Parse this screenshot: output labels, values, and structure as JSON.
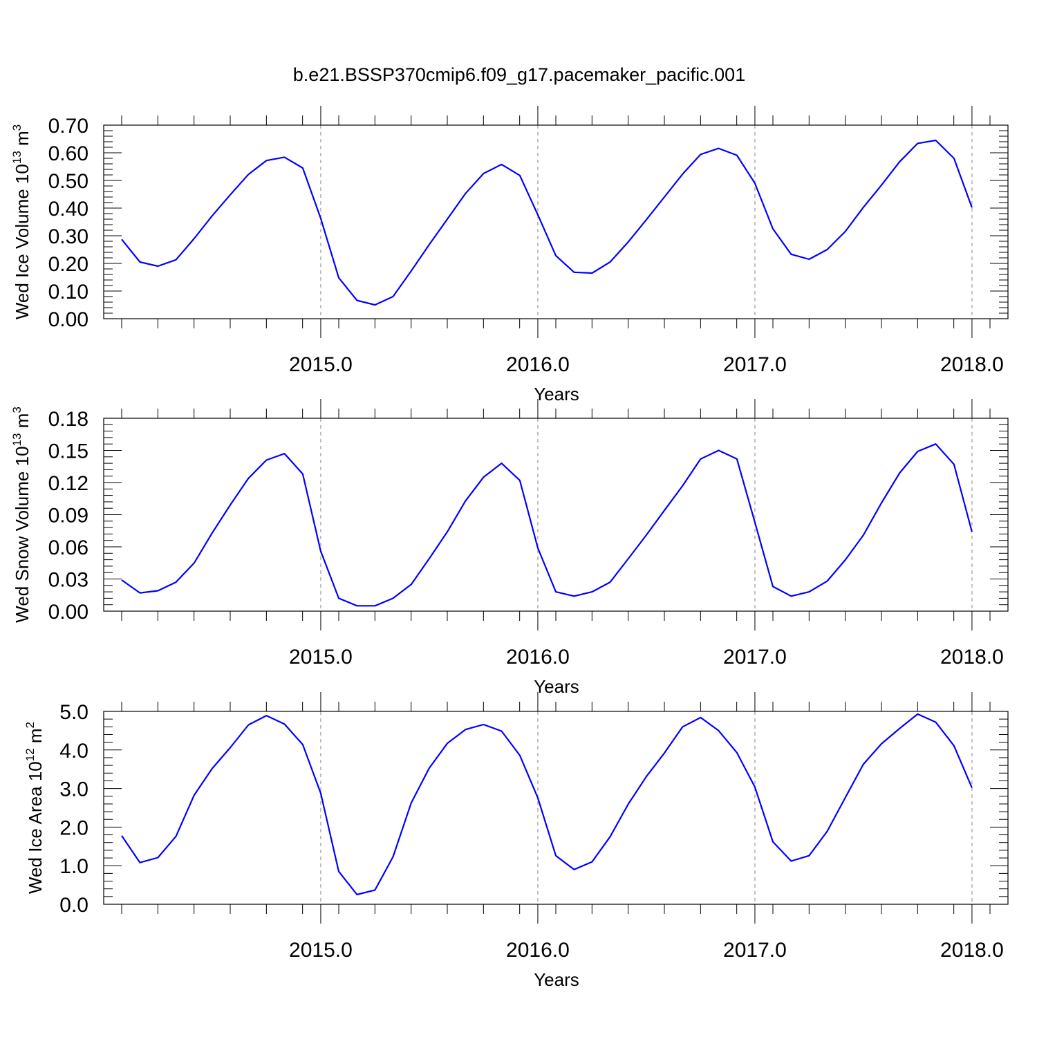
{
  "figure_title": "b.e21.BSSP370cmip6.f09_g17.pacemaker_pacific.001",
  "line_color": "#0000ff",
  "chart_data": [
    {
      "type": "line",
      "xlabel": "Years",
      "ylabel": "Wed Ice Volume 10",
      "ylabel_exp": "13",
      "ylabel_unit": " m",
      "ylabel_unit_exp": "3",
      "xlim": [
        2014.083,
        2018.083
      ],
      "ylim": [
        0.0,
        0.7
      ],
      "xticks": [
        2015.0,
        2016.0,
        2017.0,
        2018.0
      ],
      "xtick_labels": [
        "2015.0",
        "2016.0",
        "2017.0",
        "2018.0"
      ],
      "yticks": [
        0.0,
        0.1,
        0.2,
        0.3,
        0.4,
        0.5,
        0.6,
        0.7
      ],
      "ytick_labels": [
        "0.00",
        "0.10",
        "0.20",
        "0.30",
        "0.40",
        "0.50",
        "0.60",
        "0.70"
      ],
      "grid": "vertical dashed at major x ticks",
      "x": [
        2014.083,
        2014.167,
        2014.25,
        2014.333,
        2014.417,
        2014.5,
        2014.583,
        2014.667,
        2014.75,
        2014.833,
        2014.917,
        2015.0,
        2015.083,
        2015.167,
        2015.25,
        2015.333,
        2015.417,
        2015.5,
        2015.583,
        2015.667,
        2015.75,
        2015.833,
        2015.917,
        2016.0,
        2016.083,
        2016.167,
        2016.25,
        2016.333,
        2016.417,
        2016.5,
        2016.583,
        2016.667,
        2016.75,
        2016.833,
        2016.917,
        2017.0,
        2017.083,
        2017.167,
        2017.25,
        2017.333,
        2017.417,
        2017.5,
        2017.583,
        2017.667,
        2017.75,
        2017.833,
        2017.917,
        2018.0
      ],
      "series": [
        {
          "values": [
            0.287,
            0.205,
            0.19,
            0.213,
            0.29,
            0.372,
            0.448,
            0.522,
            0.572,
            0.584,
            0.545,
            0.363,
            0.148,
            0.066,
            0.05,
            0.08,
            0.173,
            0.268,
            0.36,
            0.453,
            0.525,
            0.558,
            0.518,
            0.376,
            0.228,
            0.168,
            0.165,
            0.205,
            0.278,
            0.358,
            0.44,
            0.523,
            0.594,
            0.616,
            0.591,
            0.49,
            0.325,
            0.233,
            0.215,
            0.25,
            0.316,
            0.403,
            0.483,
            0.568,
            0.634,
            0.645,
            0.58,
            0.402
          ]
        }
      ]
    },
    {
      "type": "line",
      "xlabel": "Years",
      "ylabel": "Wed Snow Volume 10",
      "ylabel_exp": "13",
      "ylabel_unit": " m",
      "ylabel_unit_exp": "3",
      "xlim": [
        2014.083,
        2018.083
      ],
      "ylim": [
        0.0,
        0.18
      ],
      "xticks": [
        2015.0,
        2016.0,
        2017.0,
        2018.0
      ],
      "xtick_labels": [
        "2015.0",
        "2016.0",
        "2017.0",
        "2018.0"
      ],
      "yticks": [
        0.0,
        0.03,
        0.06,
        0.09,
        0.12,
        0.15,
        0.18
      ],
      "ytick_labels": [
        "0.00",
        "0.03",
        "0.06",
        "0.09",
        "0.12",
        "0.15",
        "0.18"
      ],
      "grid": "vertical dashed at major x ticks",
      "x": [
        2014.083,
        2014.167,
        2014.25,
        2014.333,
        2014.417,
        2014.5,
        2014.583,
        2014.667,
        2014.75,
        2014.833,
        2014.917,
        2015.0,
        2015.083,
        2015.167,
        2015.25,
        2015.333,
        2015.417,
        2015.5,
        2015.583,
        2015.667,
        2015.75,
        2015.833,
        2015.917,
        2016.0,
        2016.083,
        2016.167,
        2016.25,
        2016.333,
        2016.417,
        2016.5,
        2016.583,
        2016.667,
        2016.75,
        2016.833,
        2016.917,
        2017.0,
        2017.083,
        2017.167,
        2017.25,
        2017.333,
        2017.417,
        2017.5,
        2017.583,
        2017.667,
        2017.75,
        2017.833,
        2017.917,
        2018.0
      ],
      "series": [
        {
          "values": [
            0.029,
            0.017,
            0.019,
            0.027,
            0.045,
            0.073,
            0.099,
            0.124,
            0.141,
            0.147,
            0.128,
            0.056,
            0.012,
            0.005,
            0.005,
            0.012,
            0.025,
            0.049,
            0.074,
            0.103,
            0.125,
            0.138,
            0.122,
            0.059,
            0.018,
            0.014,
            0.018,
            0.027,
            0.049,
            0.071,
            0.094,
            0.117,
            0.142,
            0.15,
            0.142,
            0.083,
            0.023,
            0.014,
            0.018,
            0.028,
            0.048,
            0.071,
            0.101,
            0.129,
            0.149,
            0.156,
            0.137,
            0.074
          ]
        }
      ]
    },
    {
      "type": "line",
      "xlabel": "Years",
      "ylabel": "Wed Ice Area 10",
      "ylabel_exp": "12",
      "ylabel_unit": " m",
      "ylabel_unit_exp": "2",
      "xlim": [
        2014.083,
        2018.083
      ],
      "ylim": [
        0.0,
        5.0
      ],
      "xticks": [
        2015.0,
        2016.0,
        2017.0,
        2018.0
      ],
      "xtick_labels": [
        "2015.0",
        "2016.0",
        "2017.0",
        "2018.0"
      ],
      "yticks": [
        0.0,
        1.0,
        2.0,
        3.0,
        4.0,
        5.0
      ],
      "ytick_labels": [
        "0.0",
        "1.0",
        "2.0",
        "3.0",
        "4.0",
        "5.0"
      ],
      "grid": "vertical dashed at major x ticks",
      "x": [
        2014.083,
        2014.167,
        2014.25,
        2014.333,
        2014.417,
        2014.5,
        2014.583,
        2014.667,
        2014.75,
        2014.833,
        2014.917,
        2015.0,
        2015.083,
        2015.167,
        2015.25,
        2015.333,
        2015.417,
        2015.5,
        2015.583,
        2015.667,
        2015.75,
        2015.833,
        2015.917,
        2016.0,
        2016.083,
        2016.167,
        2016.25,
        2016.333,
        2016.417,
        2016.5,
        2016.583,
        2016.667,
        2016.75,
        2016.833,
        2016.917,
        2017.0,
        2017.083,
        2017.167,
        2017.25,
        2017.333,
        2017.417,
        2017.5,
        2017.583,
        2017.667,
        2017.75,
        2017.833,
        2017.917,
        2018.0
      ],
      "series": [
        {
          "values": [
            1.78,
            1.08,
            1.21,
            1.76,
            2.83,
            3.52,
            4.06,
            4.65,
            4.89,
            4.67,
            4.14,
            2.88,
            0.85,
            0.25,
            0.37,
            1.23,
            2.63,
            3.53,
            4.17,
            4.53,
            4.66,
            4.49,
            3.86,
            2.76,
            1.26,
            0.9,
            1.1,
            1.75,
            2.6,
            3.31,
            3.92,
            4.6,
            4.84,
            4.5,
            3.93,
            3.04,
            1.62,
            1.12,
            1.26,
            1.89,
            2.77,
            3.63,
            4.16,
            4.56,
            4.93,
            4.72,
            4.11,
            3.02
          ]
        }
      ]
    }
  ]
}
